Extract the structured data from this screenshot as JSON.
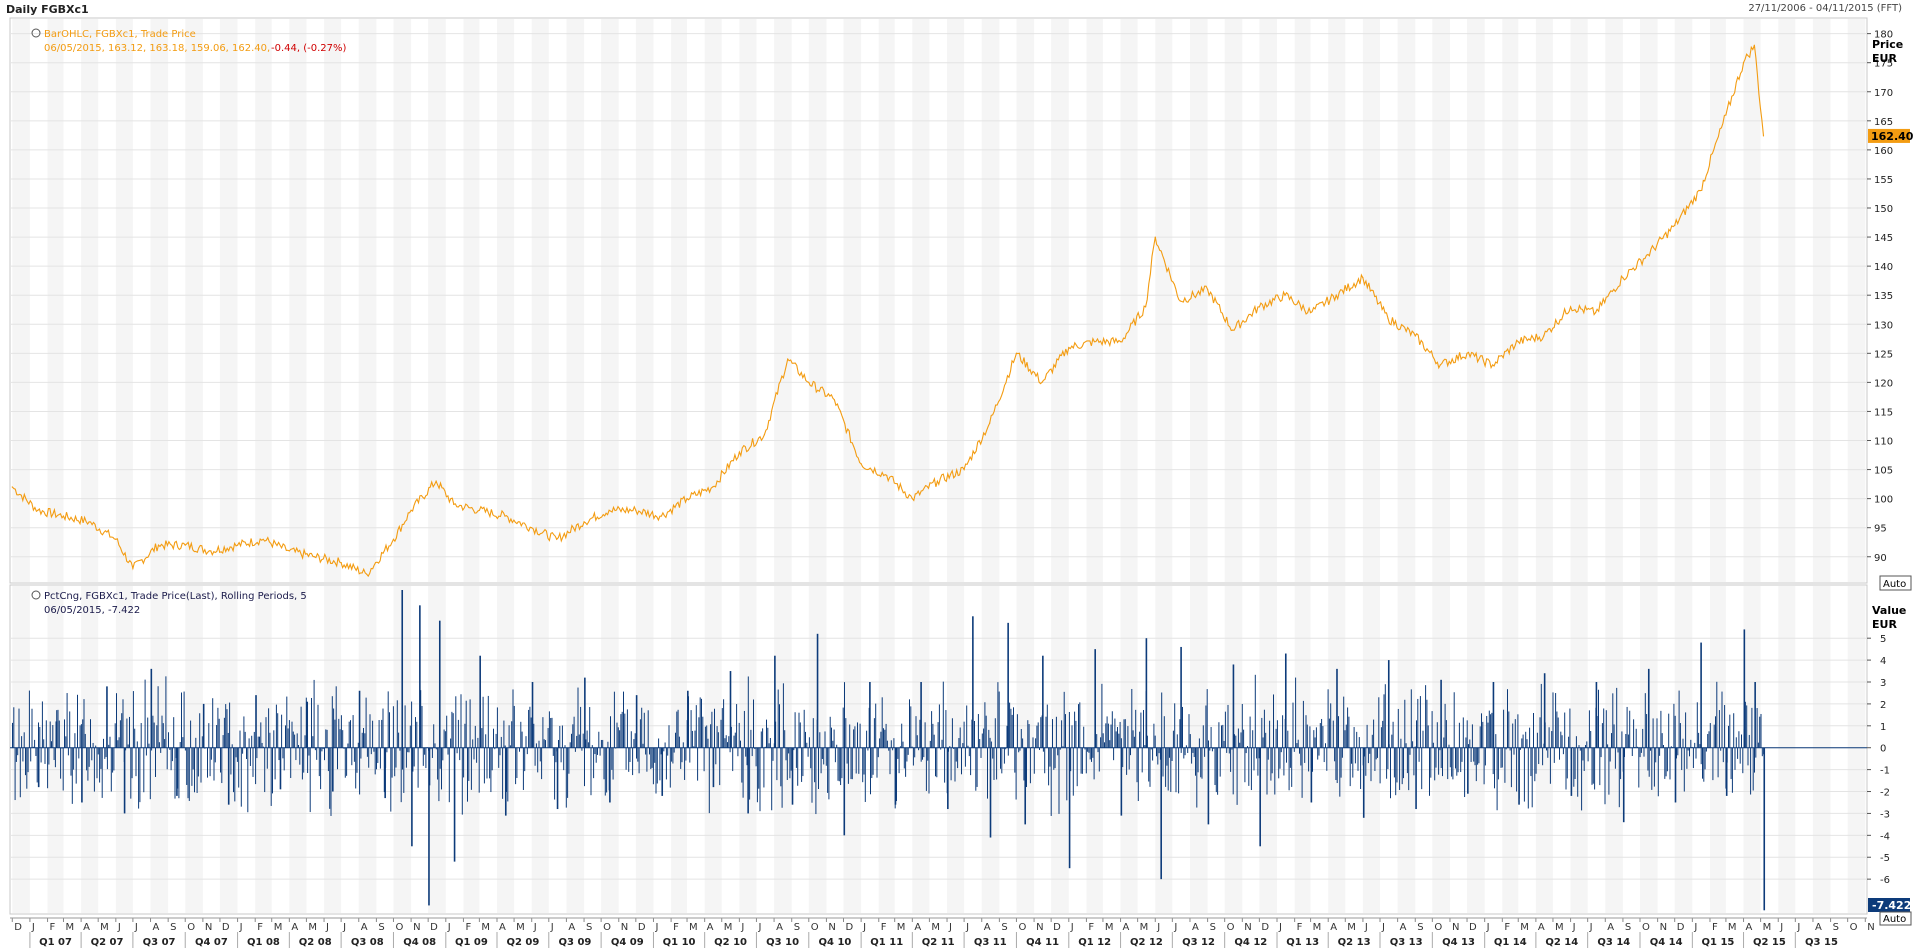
{
  "window": {
    "title": "Daily FGBXc1",
    "date_range": "27/11/2006 - 04/11/2015 (FFT)"
  },
  "price_panel": {
    "legend_line1": "BarOHLC, FGBXc1, Trade Price",
    "legend_line2_values": "06/05/2015, 163.12, 163.18, 159.06, 162.40,",
    "legend_line2_change": "-0.44, (-0.27%)",
    "axis_title": "Price",
    "axis_unit": "EUR",
    "last_value_badge": "162.40",
    "auto_button": "Auto",
    "colors": {
      "line": "#f39c12",
      "badge": "#f39c12"
    }
  },
  "pct_panel": {
    "legend_line1": "PctCng, FGBXc1, Trade Price(Last), Rolling Periods, 5",
    "legend_line2": "06/05/2015, -7.422",
    "axis_title": "Value",
    "axis_unit": "EUR",
    "last_value_badge": "-7.422",
    "auto_button": "Auto",
    "colors": {
      "bars": "#0d3b7a",
      "badge": "#0d3b7a"
    }
  },
  "chart_data": [
    {
      "type": "line",
      "series": [
        {
          "name": "FGBXc1 Trade Price",
          "x": [
            "2006-12-01",
            "2007-01-15",
            "2007-03-01",
            "2007-04-15",
            "2007-06-01",
            "2007-07-01",
            "2007-08-15",
            "2007-10-01",
            "2007-11-15",
            "2008-01-01",
            "2008-02-15",
            "2008-04-01",
            "2008-05-15",
            "2008-07-01",
            "2008-08-15",
            "2008-10-01",
            "2008-11-01",
            "2008-12-15",
            "2009-01-15",
            "2009-03-01",
            "2009-04-15",
            "2009-06-01",
            "2009-07-15",
            "2009-09-01",
            "2009-10-15",
            "2009-12-01",
            "2010-01-15",
            "2010-03-01",
            "2010-04-15",
            "2010-06-01",
            "2010-07-15",
            "2010-08-25",
            "2010-10-01",
            "2010-11-15",
            "2011-01-01",
            "2011-02-15",
            "2011-04-01",
            "2011-05-15",
            "2011-07-01",
            "2011-08-15",
            "2011-10-01",
            "2011-11-15",
            "2012-01-01",
            "2012-02-15",
            "2012-04-01",
            "2012-05-15",
            "2012-06-01",
            "2012-07-15",
            "2012-09-01",
            "2012-10-15",
            "2012-12-01",
            "2013-01-15",
            "2013-03-01",
            "2013-04-15",
            "2013-06-01",
            "2013-07-15",
            "2013-09-01",
            "2013-10-15",
            "2013-12-01",
            "2014-01-15",
            "2014-03-01",
            "2014-04-15",
            "2014-06-01",
            "2014-07-15",
            "2014-09-01",
            "2014-10-15",
            "2014-12-01",
            "2015-01-15",
            "2015-03-01",
            "2015-04-01",
            "2015-04-20",
            "2015-05-06"
          ],
          "values": [
            102,
            98,
            97,
            96,
            93,
            88,
            92,
            92,
            91,
            92,
            93,
            91,
            90,
            89,
            87,
            93,
            98,
            103,
            99,
            98,
            97,
            95,
            93,
            96,
            98,
            98,
            97,
            100,
            102,
            108,
            111,
            124,
            120,
            117,
            106,
            104,
            100,
            103,
            105,
            113,
            125,
            120,
            126,
            127,
            127,
            133,
            145,
            134,
            136,
            129,
            133,
            135,
            132,
            135,
            138,
            131,
            128,
            123,
            125,
            123,
            127,
            128,
            133,
            132,
            138,
            142,
            147,
            153,
            166,
            175,
            178,
            162.4
          ]
        }
      ],
      "title": "",
      "ylabel": "Price EUR",
      "ylim": [
        86,
        182
      ],
      "yticks": [
        90,
        95,
        100,
        105,
        110,
        115,
        120,
        125,
        130,
        135,
        140,
        145,
        150,
        155,
        160,
        165,
        170,
        175,
        180
      ],
      "xlim": [
        "2006-11-27",
        "2015-11-04"
      ],
      "grid": true
    },
    {
      "type": "bar",
      "series": [
        {
          "name": "PctCng 5-period",
          "x": [
            "2007-01-15",
            "2007-02-15",
            "2007-04-01",
            "2007-05-15",
            "2007-06-15",
            "2007-08-01",
            "2007-09-15",
            "2007-11-01",
            "2007-12-15",
            "2008-02-01",
            "2008-03-15",
            "2008-05-01",
            "2008-06-15",
            "2008-08-01",
            "2008-09-15",
            "2008-10-15",
            "2008-11-01",
            "2008-11-15",
            "2008-12-01",
            "2008-12-20",
            "2009-01-15",
            "2009-03-01",
            "2009-04-15",
            "2009-06-01",
            "2009-07-15",
            "2009-09-01",
            "2009-10-15",
            "2009-12-01",
            "2010-01-15",
            "2010-03-01",
            "2010-04-15",
            "2010-05-15",
            "2010-06-15",
            "2010-08-01",
            "2010-09-01",
            "2010-10-15",
            "2010-12-01",
            "2011-01-15",
            "2011-03-01",
            "2011-04-15",
            "2011-06-01",
            "2011-07-15",
            "2011-08-15",
            "2011-09-15",
            "2011-10-15",
            "2011-11-15",
            "2012-01-01",
            "2012-02-15",
            "2012-04-01",
            "2012-05-15",
            "2012-06-10",
            "2012-07-15",
            "2012-09-01",
            "2012-10-15",
            "2012-12-01",
            "2013-01-15",
            "2013-03-01",
            "2013-04-15",
            "2013-06-01",
            "2013-07-15",
            "2013-09-01",
            "2013-10-15",
            "2013-12-01",
            "2014-01-15",
            "2014-03-01",
            "2014-04-15",
            "2014-06-01",
            "2014-07-15",
            "2014-09-01",
            "2014-10-15",
            "2014-12-01",
            "2015-01-15",
            "2015-03-01",
            "2015-04-01",
            "2015-04-20",
            "2015-05-06"
          ],
          "values": [
            -1.8,
            1.2,
            -2.5,
            2.8,
            -3.0,
            3.6,
            -2.2,
            2.0,
            -2.6,
            2.4,
            -1.9,
            2.1,
            -2.0,
            2.6,
            -2.3,
            7.2,
            -4.5,
            6.5,
            -7.2,
            5.8,
            -5.2,
            4.2,
            -3.1,
            3.0,
            -2.8,
            3.2,
            -2.5,
            2.4,
            -2.2,
            2.6,
            -1.8,
            3.5,
            -3.0,
            4.2,
            -2.6,
            5.2,
            -4.0,
            3.0,
            -2.6,
            3.0,
            -2.8,
            6.0,
            -4.1,
            5.7,
            -3.5,
            4.2,
            -5.5,
            4.5,
            -3.1,
            5.0,
            -6.0,
            4.6,
            -3.5,
            3.8,
            -4.5,
            4.3,
            -2.5,
            3.6,
            -3.2,
            4.0,
            -2.8,
            3.1,
            -2.1,
            3.0,
            -2.6,
            3.4,
            -2.2,
            3.0,
            -3.4,
            3.6,
            -2.5,
            4.8,
            -2.2,
            5.4,
            3.0,
            -7.422
          ]
        }
      ],
      "title": "",
      "ylabel": "Value EUR",
      "ylim": [
        -7.5,
        7.2
      ],
      "yticks": [
        -6,
        -5,
        -4,
        -3,
        -2,
        -1,
        0,
        1,
        2,
        3,
        4,
        5
      ],
      "xlim": [
        "2006-11-27",
        "2015-11-04"
      ]
    }
  ],
  "x_axis": {
    "months": [
      "D",
      "J",
      "F",
      "M",
      "A",
      "M",
      "J",
      "J",
      "A",
      "S",
      "O",
      "N",
      "D",
      "J",
      "F",
      "M",
      "A",
      "M",
      "J",
      "J",
      "A",
      "S",
      "O",
      "N",
      "D",
      "J",
      "F",
      "M",
      "A",
      "M",
      "J",
      "J",
      "A",
      "S",
      "O",
      "N",
      "D",
      "J",
      "F",
      "M",
      "A",
      "M",
      "J",
      "J",
      "A",
      "S",
      "O",
      "N",
      "D",
      "J",
      "F",
      "M",
      "A",
      "M",
      "J",
      "J",
      "A",
      "S",
      "O",
      "N",
      "D",
      "J",
      "F",
      "M",
      "A",
      "M",
      "J",
      "J",
      "A",
      "S",
      "O",
      "N",
      "D",
      "J",
      "F",
      "M",
      "A",
      "M",
      "J",
      "J",
      "A",
      "S",
      "O",
      "N",
      "D",
      "J",
      "F",
      "M",
      "A",
      "M",
      "J",
      "J",
      "A",
      "S",
      "O",
      "N",
      "D",
      "J",
      "F",
      "M",
      "A",
      "M",
      "J",
      "J",
      "A",
      "S",
      "O",
      "N"
    ],
    "quarters": [
      "Q1 07",
      "Q2 07",
      "Q3 07",
      "Q4 07",
      "Q1 08",
      "Q2 08",
      "Q3 08",
      "Q4 08",
      "Q1 09",
      "Q2 09",
      "Q3 09",
      "Q4 09",
      "Q1 10",
      "Q2 10",
      "Q3 10",
      "Q4 10",
      "Q1 11",
      "Q2 11",
      "Q3 11",
      "Q4 11",
      "Q1 12",
      "Q2 12",
      "Q3 12",
      "Q4 12",
      "Q1 13",
      "Q2 13",
      "Q3 13",
      "Q4 13",
      "Q1 14",
      "Q2 14",
      "Q3 14",
      "Q4 14",
      "Q1 15",
      "Q2 15",
      "Q3 15"
    ]
  }
}
